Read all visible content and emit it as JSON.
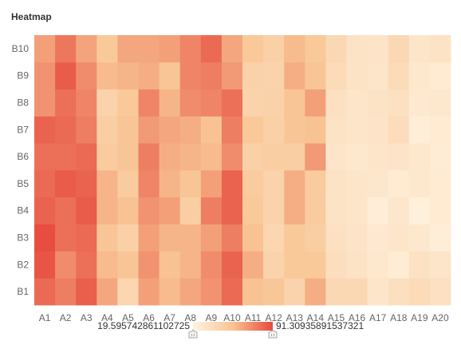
{
  "chart_data": {
    "type": "heatmap",
    "title": "Heatmap",
    "x_categories": [
      "A1",
      "A2",
      "A3",
      "A4",
      "A5",
      "A6",
      "A7",
      "A8",
      "A9",
      "A10",
      "A11",
      "A12",
      "A13",
      "A14",
      "A15",
      "A16",
      "A17",
      "A18",
      "A19",
      "A20"
    ],
    "y_categories": [
      "B1",
      "B2",
      "B3",
      "B4",
      "B5",
      "B6",
      "B7",
      "B8",
      "B9",
      "B10"
    ],
    "values": [
      [
        82,
        76,
        85,
        64,
        42,
        66,
        58,
        64,
        70,
        82,
        56,
        53,
        44,
        62,
        40,
        40,
        30,
        35,
        38,
        34
      ],
      [
        88,
        72,
        80,
        58,
        54,
        70,
        56,
        60,
        72,
        84,
        62,
        44,
        52,
        52,
        36,
        32,
        28,
        25,
        33,
        30
      ],
      [
        90,
        80,
        82,
        54,
        46,
        66,
        60,
        60,
        66,
        76,
        56,
        42,
        52,
        48,
        34,
        31,
        27,
        30,
        28,
        24
      ],
      [
        84,
        80,
        86,
        60,
        56,
        70,
        66,
        48,
        76,
        84,
        52,
        44,
        62,
        50,
        32,
        30,
        24,
        29,
        22,
        26
      ],
      [
        82,
        86,
        84,
        60,
        50,
        74,
        60,
        54,
        66,
        84,
        50,
        44,
        62,
        50,
        32,
        30,
        29,
        26,
        28,
        26
      ],
      [
        80,
        80,
        82,
        50,
        54,
        76,
        62,
        60,
        58,
        72,
        46,
        48,
        48,
        68,
        30,
        28,
        30,
        31,
        28,
        25
      ],
      [
        84,
        82,
        76,
        48,
        54,
        68,
        64,
        62,
        56,
        76,
        52,
        46,
        54,
        56,
        32,
        30,
        31,
        37,
        24,
        26
      ],
      [
        70,
        80,
        74,
        44,
        52,
        74,
        60,
        72,
        74,
        80,
        44,
        45,
        54,
        66,
        34,
        30,
        32,
        34,
        27,
        28
      ],
      [
        70,
        86,
        72,
        58,
        60,
        62,
        54,
        74,
        76,
        68,
        45,
        44,
        62,
        54,
        38,
        32,
        30,
        38,
        28,
        26
      ],
      [
        66,
        78,
        65,
        52,
        64,
        64,
        66,
        74,
        82,
        64,
        52,
        46,
        58,
        52,
        40,
        32,
        31,
        40,
        30,
        32
      ]
    ],
    "value_min": 19.595742861102725,
    "value_max": 91.30935891537321,
    "value_min_label": "19.595742861102725",
    "value_max_label": "91.30935891537321",
    "color_low": "#fff3e0",
    "color_mid": "#f8c493",
    "color_high": "#e64a3c",
    "grid": false,
    "visual_map": "bottom-center"
  }
}
